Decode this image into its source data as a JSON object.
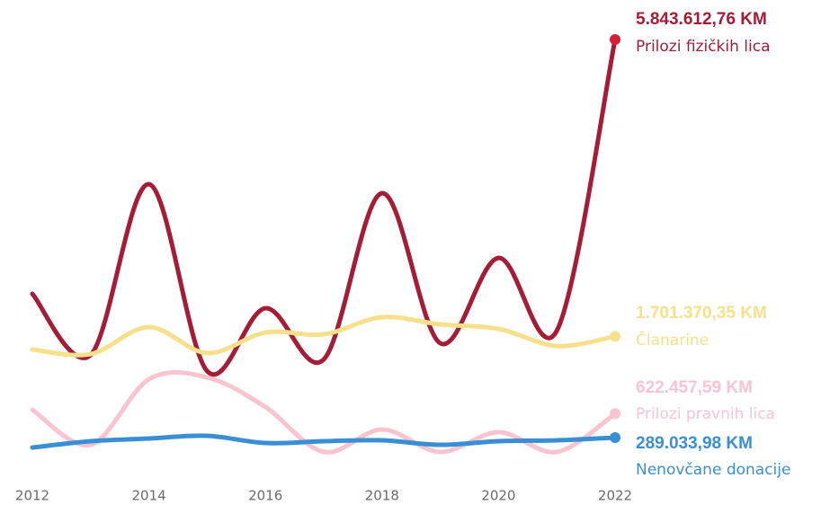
{
  "chart_data": {
    "type": "line",
    "x": [
      2012,
      2013,
      2014,
      2015,
      2016,
      2017,
      2018,
      2019,
      2020,
      2021,
      2022
    ],
    "xlim": [
      2012,
      2022
    ],
    "xticks": [
      2012,
      2014,
      2016,
      2018,
      2020,
      2022
    ],
    "ylim": [
      0,
      6000000
    ],
    "series": [
      {
        "name": "Prilozi fizičkih lica",
        "color": "#a51c36",
        "dot_color": "#d91e3c",
        "values": [
          2294000,
          1442000,
          3824000,
          1216000,
          2094000,
          1379000,
          3699000,
          1605000,
          2796000,
          1780000,
          5843612.76
        ],
        "value_labels": [
          null,
          null,
          null,
          null,
          null,
          null,
          null,
          null,
          null,
          null,
          "5.843.612,76 KM"
        ]
      },
      {
        "name": "Članarine",
        "color": "#f6e08b",
        "values": [
          1517000,
          1454000,
          1831000,
          1467000,
          1755000,
          1730000,
          1969000,
          1868000,
          1806000,
          1567000,
          1701370.35
        ],
        "value_labels": [
          null,
          null,
          null,
          null,
          null,
          null,
          null,
          null,
          null,
          null,
          "1.701.370,35 KM"
        ]
      },
      {
        "name": "Prilozi pravnih lica",
        "color": "#f7c4d0",
        "values": [
          677000,
          188000,
          1103000,
          1128000,
          715000,
          88000,
          401000,
          88000,
          364000,
          88000,
          622457.59
        ],
        "value_labels": [
          null,
          null,
          null,
          null,
          null,
          null,
          null,
          null,
          null,
          null,
          "622.457,59 KM"
        ]
      },
      {
        "name": "Nenovčane donacije",
        "color": "#3a8fd4",
        "values": [
          150000,
          238000,
          276000,
          313000,
          213000,
          238000,
          251000,
          188000,
          238000,
          251000,
          289033.98
        ],
        "value_labels": [
          null,
          null,
          null,
          null,
          null,
          null,
          null,
          null,
          null,
          null,
          "289.033,98 KM"
        ]
      }
    ]
  }
}
